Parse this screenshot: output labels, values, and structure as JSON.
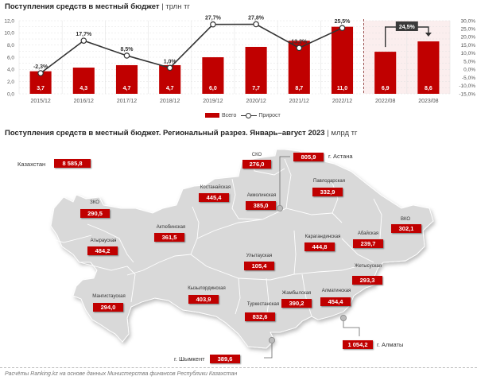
{
  "top_chart": {
    "title": "Поступления средств в местный бюджет",
    "unit": "| трлн тг",
    "legend": {
      "bars": "Всего",
      "line": "Прирост"
    },
    "comparison_badge": "24,5%"
  },
  "chart_data": [
    {
      "type": "bar",
      "title": "Поступления средств в местный бюджет | трлн тг",
      "categories": [
        "2015/12",
        "2016/12",
        "2017/12",
        "2018/12",
        "2019/12",
        "2020/12",
        "2021/12",
        "2022/12",
        "2022/08",
        "2023/08"
      ],
      "series": [
        {
          "name": "Всего",
          "type": "bar",
          "axis": "left",
          "color": "#c00000",
          "values": [
            3.7,
            4.3,
            4.7,
            4.7,
            6.0,
            7.7,
            8.7,
            11.0,
            6.9,
            8.6
          ],
          "labels": [
            "3,7",
            "4,3",
            "4,7",
            "4,7",
            "6,0",
            "7,7",
            "8,7",
            "11,0",
            "6,9",
            "8,6"
          ]
        },
        {
          "name": "Прирост",
          "type": "line",
          "axis": "right",
          "color": "#333333",
          "values": [
            -2.3,
            17.7,
            8.5,
            1.0,
            27.7,
            27.8,
            13.2,
            25.5,
            null,
            null
          ],
          "labels": [
            "-2,3%",
            "17,7%",
            "8,5%",
            "1,0%",
            "27,7%",
            "27,8%",
            "13,2%",
            "25,5%"
          ]
        }
      ],
      "annotation": {
        "from": "2022/08",
        "to": "2023/08",
        "label": "24,5%"
      },
      "left_axis": {
        "range": [
          0,
          12
        ],
        "ticks": [
          "0,0",
          "2,0",
          "4,0",
          "6,0",
          "8,0",
          "10,0",
          "12,0"
        ]
      },
      "right_axis": {
        "range": [
          -15,
          30
        ],
        "ticks": [
          "-15,0%",
          "-10,0%",
          "-5,0%",
          "0,0%",
          "5,0%",
          "10,0%",
          "15,0%",
          "20,0%",
          "25,0%",
          "30,0%"
        ]
      },
      "grid": true,
      "legend_position": "bottom",
      "highlight_region": [
        "2022/08",
        "2023/08"
      ]
    },
    {
      "type": "map",
      "title": "Поступления средств в местный бюджет. Региональный разрез. Январь–август 2023 | млрд тг",
      "total": {
        "name": "Казахстан",
        "value": "8 585,8"
      },
      "regions": [
        {
          "name": "СКО",
          "value": "276,0"
        },
        {
          "name": "г. Астана",
          "value": "805,9"
        },
        {
          "name": "Костанайская",
          "value": "445,4"
        },
        {
          "name": "Акмолинская",
          "value": "385,0"
        },
        {
          "name": "Павлодарская",
          "value": "332,9"
        },
        {
          "name": "ЗКО",
          "value": "290,5"
        },
        {
          "name": "Актюбинская",
          "value": "361,5"
        },
        {
          "name": "Атырауская",
          "value": "484,2"
        },
        {
          "name": "ВКО",
          "value": "302,1"
        },
        {
          "name": "Абайская",
          "value": "239,7"
        },
        {
          "name": "Карагандинская",
          "value": "444,8"
        },
        {
          "name": "Улытауская",
          "value": "105,4"
        },
        {
          "name": "Жетысуская",
          "value": "293,3"
        },
        {
          "name": "Мангистауская",
          "value": "294,0"
        },
        {
          "name": "Кызылординская",
          "value": "403,9"
        },
        {
          "name": "Жамбылская",
          "value": "390,2"
        },
        {
          "name": "Алматинская",
          "value": "454,4"
        },
        {
          "name": "Туркестанская",
          "value": "832,6"
        },
        {
          "name": "г. Алматы",
          "value": "1 054,2"
        },
        {
          "name": "г. Шымкент",
          "value": "389,6"
        }
      ]
    }
  ],
  "map": {
    "title": "Поступления средств в местный бюджет. Региональный разрез. Январь–август 2023",
    "unit": "| млрд тг",
    "total_label": "Казахстан",
    "total_value": "8 585,8",
    "regions": {
      "sko": {
        "name": "СКО",
        "value": "276,0"
      },
      "astana": {
        "name": "г. Астана",
        "value": "805,9"
      },
      "kostanay": {
        "name": "Костанайская",
        "value": "445,4"
      },
      "akmola": {
        "name": "Акмолинская",
        "value": "385,0"
      },
      "pavlodar": {
        "name": "Павлодарская",
        "value": "332,9"
      },
      "zko": {
        "name": "ЗКО",
        "value": "290,5"
      },
      "aktobe": {
        "name": "Актюбинская",
        "value": "361,5"
      },
      "atyrau": {
        "name": "Атырауская",
        "value": "484,2"
      },
      "vko": {
        "name": "ВКО",
        "value": "302,1"
      },
      "abai": {
        "name": "Абайская",
        "value": "239,7"
      },
      "karaganda": {
        "name": "Карагандинская",
        "value": "444,8"
      },
      "ulytau": {
        "name": "Улытауская",
        "value": "105,4"
      },
      "zhetisu": {
        "name": "Жетысуская",
        "value": "293,3"
      },
      "mangistau": {
        "name": "Мангистауская",
        "value": "294,0"
      },
      "kyzylorda": {
        "name": "Кызылординская",
        "value": "403,9"
      },
      "zhambyl": {
        "name": "Жамбылская",
        "value": "390,2"
      },
      "almaty_reg": {
        "name": "Алматинская",
        "value": "454,4"
      },
      "turkestan": {
        "name": "Туркестанская",
        "value": "832,6"
      },
      "almaty": {
        "name": "г. Алматы",
        "value": "1 054,2"
      },
      "shymkent": {
        "name": "г. Шымкент",
        "value": "389,6"
      }
    }
  },
  "footer": "Расчёты Ranking.kz на основе данных Министерства финансов Республики Казахстан",
  "colors": {
    "accent": "#c00000",
    "line": "#333333",
    "map_fill": "#d9d9d9",
    "highlight_bg": "#fbeeee"
  }
}
